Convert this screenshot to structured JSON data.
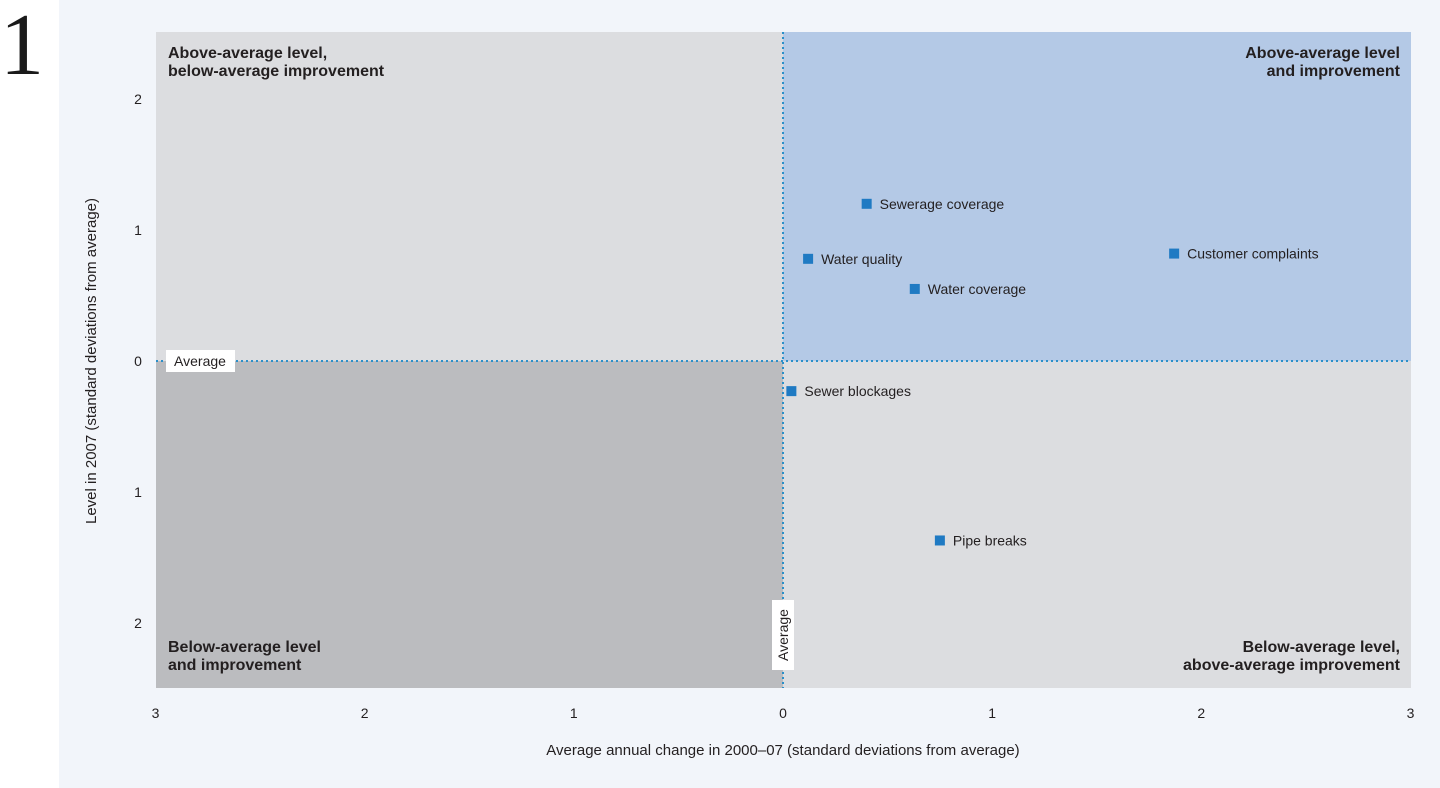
{
  "figure_number": "1",
  "chart_data": {
    "type": "scatter",
    "xlabel": "Average annual change in 2000–07 (standard deviations from average)",
    "ylabel": "Level in 2007 (standard deviations from average)",
    "xlim": [
      -3,
      3
    ],
    "ylim": [
      -2.5,
      2.5
    ],
    "x_ticks": [
      {
        "value": -3,
        "label": "3"
      },
      {
        "value": -2,
        "label": "2"
      },
      {
        "value": -1,
        "label": "1"
      },
      {
        "value": 0,
        "label": "0"
      },
      {
        "value": 1,
        "label": "1"
      },
      {
        "value": 2,
        "label": "2"
      },
      {
        "value": 3,
        "label": "3"
      }
    ],
    "y_ticks": [
      {
        "value": 2,
        "label": "2"
      },
      {
        "value": 1,
        "label": "1"
      },
      {
        "value": 0,
        "label": "0"
      },
      {
        "value": -1,
        "label": "1"
      },
      {
        "value": -2,
        "label": "2"
      }
    ],
    "average_label_x": "Average",
    "average_label_y": "Average",
    "quadrants": {
      "top_left": [
        "Above-average level,",
        "below-average improvement"
      ],
      "top_right": [
        "Above-average level",
        "and improvement"
      ],
      "bottom_left": [
        "Below-average level",
        "and improvement"
      ],
      "bottom_right": [
        "Below-average level,",
        "above-average improvement"
      ]
    },
    "colors": {
      "top_right": "#b4c9e6",
      "top_left": "#dcdde0",
      "bottom_right": "#dcdde0",
      "bottom_left": "#bbbcbf",
      "marker": "#1f7ac3",
      "avg_line": "#2a8fc9"
    },
    "points": [
      {
        "label": "Sewerage coverage",
        "x": 0.4,
        "y": 1.2
      },
      {
        "label": "Customer complaints",
        "x": 1.87,
        "y": 0.82
      },
      {
        "label": "Water quality",
        "x": 0.12,
        "y": 0.78
      },
      {
        "label": "Water coverage",
        "x": 0.63,
        "y": 0.55
      },
      {
        "label": "Sewer blockages",
        "x": 0.04,
        "y": -0.23
      },
      {
        "label": "Pipe breaks",
        "x": 0.75,
        "y": -1.37
      }
    ]
  }
}
